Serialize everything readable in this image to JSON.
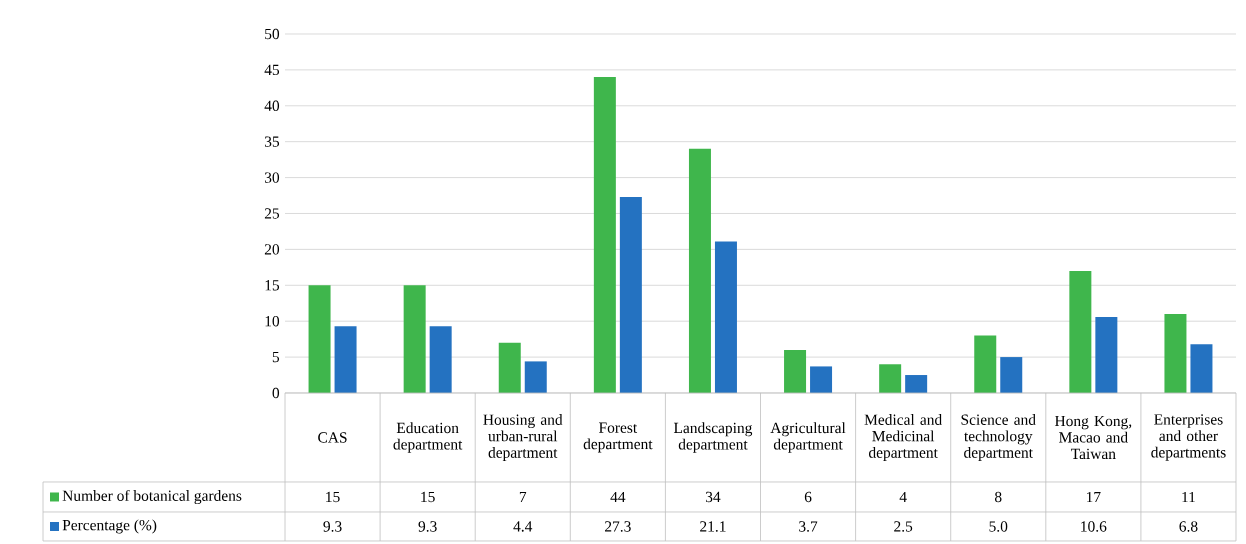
{
  "chart_data": {
    "type": "bar",
    "categories": [
      "CAS",
      "Education department",
      "Housing and urban-rural department",
      "Forest department",
      "Landscaping department",
      "Agricultural department",
      "Medical and Medicinal department",
      "Science and technology department",
      "Hong Kong, Macao and Taiwan",
      "Enterprises and other departments"
    ],
    "series": [
      {
        "name": "Number of botanical gardens",
        "color": "#3fb64c",
        "values": [
          15,
          15,
          7,
          44,
          34,
          6,
          4,
          8,
          17,
          11
        ],
        "value_labels": [
          "15",
          "15",
          "7",
          "44",
          "34",
          "6",
          "4",
          "8",
          "17",
          "11"
        ]
      },
      {
        "name": "Percentage (%)",
        "color": "#2472c1",
        "values": [
          9.3,
          9.3,
          4.4,
          27.3,
          21.1,
          3.7,
          2.5,
          5.0,
          10.6,
          6.8
        ],
        "value_labels": [
          "9.3",
          "9.3",
          "4.4",
          "27.3",
          "21.1",
          "3.7",
          "2.5",
          "5.0",
          "10.6",
          "6.8"
        ]
      }
    ],
    "ylim": [
      0,
      50
    ],
    "yticks": [
      0,
      5,
      10,
      15,
      20,
      25,
      30,
      35,
      40,
      45,
      50
    ],
    "grid": "y",
    "legend": "bottom"
  }
}
